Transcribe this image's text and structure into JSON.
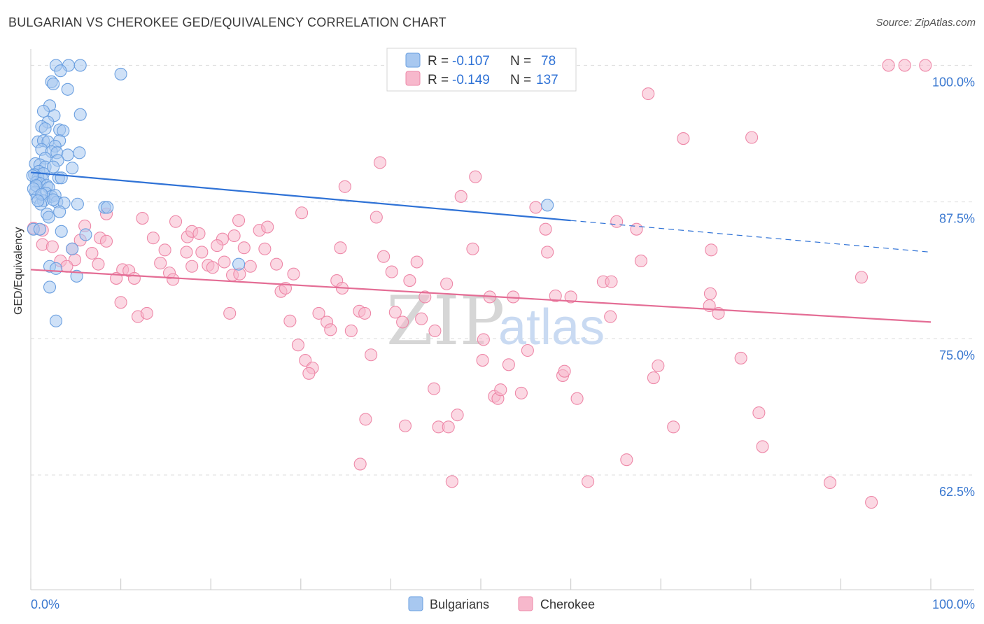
{
  "title": "BULGARIAN VS CHEROKEE GED/EQUIVALENCY CORRELATION CHART",
  "source": "Source: ZipAtlas.com",
  "watermark": {
    "zip": "ZIP",
    "atlas": "atlas"
  },
  "colors": {
    "blue_fill": "#a8c8f0",
    "blue_stroke": "#6a9fe0",
    "blue_line": "#2f72d6",
    "pink_fill": "#f7b8cc",
    "pink_stroke": "#ee88a8",
    "pink_line": "#e46d95",
    "axis_label": "#3a78d0",
    "grid": "#dddddd"
  },
  "legend": [
    {
      "r_label": "R = ",
      "r_value": "-0.107",
      "n_label": "N = ",
      "n_value": "78"
    },
    {
      "r_label": "R = ",
      "r_value": "-0.149",
      "n_label": "N = ",
      "n_value": "137"
    }
  ],
  "chart_data": {
    "type": "scatter",
    "xlabel": "",
    "ylabel": "GED/Equivalency",
    "xlim": [
      0,
      100
    ],
    "ylim": [
      52,
      101.5
    ],
    "x_tick_labels": [
      "0.0%",
      "100.0%"
    ],
    "y_ticks": [
      62.5,
      75.0,
      87.5,
      100.0
    ],
    "y_tick_labels": [
      "62.5%",
      "75.0%",
      "87.5%",
      "100.0%"
    ],
    "legend_items": [
      "Bulgarians",
      "Cherokee"
    ],
    "series": [
      {
        "name": "Bulgarians",
        "r": -0.107,
        "n": 78,
        "trend": {
          "x0": 0,
          "y0": 90.2,
          "x1": 60,
          "y1": 85.8,
          "dash_x1": 100,
          "dash_y1": 82.9
        },
        "points": [
          [
            2.8,
            100.0
          ],
          [
            4.2,
            100.0
          ],
          [
            5.5,
            100.0
          ],
          [
            3.3,
            99.5
          ],
          [
            10.0,
            99.2
          ],
          [
            2.3,
            98.5
          ],
          [
            2.5,
            98.3
          ],
          [
            4.1,
            97.8
          ],
          [
            2.1,
            96.3
          ],
          [
            1.4,
            95.8
          ],
          [
            2.6,
            95.4
          ],
          [
            5.5,
            95.5
          ],
          [
            1.9,
            94.8
          ],
          [
            1.2,
            94.4
          ],
          [
            1.6,
            94.2
          ],
          [
            3.2,
            94.1
          ],
          [
            3.6,
            94.0
          ],
          [
            0.8,
            93.0
          ],
          [
            1.4,
            93.1
          ],
          [
            1.9,
            93.0
          ],
          [
            3.2,
            93.1
          ],
          [
            2.7,
            92.6
          ],
          [
            1.2,
            92.3
          ],
          [
            2.3,
            92.1
          ],
          [
            2.9,
            92.0
          ],
          [
            4.1,
            91.8
          ],
          [
            5.4,
            92.0
          ],
          [
            1.6,
            91.5
          ],
          [
            3.0,
            91.3
          ],
          [
            0.5,
            91.0
          ],
          [
            1.0,
            90.9
          ],
          [
            1.6,
            90.7
          ],
          [
            2.5,
            90.7
          ],
          [
            0.9,
            90.3
          ],
          [
            4.6,
            90.6
          ],
          [
            0.4,
            90.0
          ],
          [
            1.4,
            90.1
          ],
          [
            0.8,
            89.7
          ],
          [
            1.3,
            89.6
          ],
          [
            3.1,
            89.7
          ],
          [
            3.4,
            89.7
          ],
          [
            0.6,
            89.3
          ],
          [
            1.0,
            89.2
          ],
          [
            1.8,
            89.0
          ],
          [
            2.0,
            88.8
          ],
          [
            0.5,
            88.4
          ],
          [
            1.7,
            88.3
          ],
          [
            2.3,
            88.0
          ],
          [
            2.7,
            88.1
          ],
          [
            0.7,
            87.9
          ],
          [
            1.4,
            87.6
          ],
          [
            1.1,
            87.3
          ],
          [
            2.9,
            87.5
          ],
          [
            3.7,
            87.4
          ],
          [
            5.2,
            87.3
          ],
          [
            8.2,
            87.0
          ],
          [
            8.5,
            87.0
          ],
          [
            3.2,
            86.6
          ],
          [
            1.8,
            86.4
          ],
          [
            2.0,
            86.1
          ],
          [
            57.4,
            87.2
          ],
          [
            0.3,
            85.0
          ],
          [
            3.4,
            84.8
          ],
          [
            6.1,
            84.5
          ],
          [
            4.6,
            83.2
          ],
          [
            2.1,
            81.6
          ],
          [
            2.8,
            81.4
          ],
          [
            23.1,
            81.8
          ],
          [
            5.1,
            80.7
          ],
          [
            2.1,
            79.7
          ],
          [
            2.8,
            76.6
          ],
          [
            1.0,
            85.0
          ],
          [
            0.2,
            89.9
          ],
          [
            0.6,
            89.0
          ],
          [
            0.3,
            88.7
          ],
          [
            1.2,
            88.2
          ],
          [
            0.8,
            87.6
          ],
          [
            2.5,
            87.7
          ]
        ]
      },
      {
        "name": "Cherokee",
        "r": -0.149,
        "n": 137,
        "trend": {
          "x0": 0,
          "y0": 81.3,
          "x1": 100,
          "y1": 76.5
        },
        "points": [
          [
            0.3,
            85.1
          ],
          [
            1.3,
            84.9
          ],
          [
            1.3,
            83.6
          ],
          [
            2.4,
            83.4
          ],
          [
            5.5,
            84.0
          ],
          [
            6.0,
            85.3
          ],
          [
            7.7,
            84.2
          ],
          [
            8.4,
            83.9
          ],
          [
            6.8,
            82.8
          ],
          [
            4.6,
            83.2
          ],
          [
            3.3,
            82.1
          ],
          [
            4.9,
            82.2
          ],
          [
            4.0,
            81.6
          ],
          [
            7.5,
            81.8
          ],
          [
            10.2,
            81.3
          ],
          [
            10.9,
            81.2
          ],
          [
            9.5,
            80.5
          ],
          [
            11.5,
            80.5
          ],
          [
            10.0,
            78.3
          ],
          [
            11.9,
            77.0
          ],
          [
            12.9,
            77.3
          ],
          [
            8.4,
            86.4
          ],
          [
            12.4,
            86.0
          ],
          [
            13.6,
            84.2
          ],
          [
            14.9,
            83.1
          ],
          [
            14.4,
            81.9
          ],
          [
            15.4,
            81.0
          ],
          [
            15.8,
            80.4
          ],
          [
            16.1,
            85.7
          ],
          [
            17.4,
            84.3
          ],
          [
            17.3,
            82.9
          ],
          [
            17.9,
            84.8
          ],
          [
            18.7,
            84.6
          ],
          [
            17.9,
            81.6
          ],
          [
            19.0,
            82.9
          ],
          [
            19.7,
            81.7
          ],
          [
            20.2,
            81.5
          ],
          [
            21.3,
            84.1
          ],
          [
            20.7,
            83.5
          ],
          [
            21.5,
            82.0
          ],
          [
            22.4,
            80.8
          ],
          [
            22.1,
            77.3
          ],
          [
            23.1,
            85.8
          ],
          [
            22.6,
            84.4
          ],
          [
            23.7,
            83.3
          ],
          [
            23.2,
            80.9
          ],
          [
            24.4,
            81.6
          ],
          [
            25.4,
            84.9
          ],
          [
            26.0,
            83.2
          ],
          [
            26.3,
            85.2
          ],
          [
            27.3,
            81.8
          ],
          [
            27.8,
            79.3
          ],
          [
            28.3,
            79.6
          ],
          [
            28.8,
            76.6
          ],
          [
            29.2,
            80.9
          ],
          [
            30.1,
            86.5
          ],
          [
            29.7,
            74.4
          ],
          [
            30.5,
            73.0
          ],
          [
            31.3,
            72.3
          ],
          [
            30.9,
            71.8
          ],
          [
            32.0,
            77.3
          ],
          [
            32.9,
            76.5
          ],
          [
            33.3,
            75.8
          ],
          [
            34.4,
            83.3
          ],
          [
            34.0,
            80.3
          ],
          [
            34.6,
            79.6
          ],
          [
            34.9,
            88.9
          ],
          [
            35.6,
            75.7
          ],
          [
            36.5,
            77.5
          ],
          [
            37.1,
            77.3
          ],
          [
            37.8,
            73.5
          ],
          [
            37.2,
            67.6
          ],
          [
            36.6,
            63.5
          ],
          [
            38.4,
            86.1
          ],
          [
            38.8,
            91.1
          ],
          [
            39.2,
            82.5
          ],
          [
            40.1,
            81.1
          ],
          [
            40.5,
            77.4
          ],
          [
            41.3,
            76.5
          ],
          [
            41.6,
            67.0
          ],
          [
            42.1,
            80.3
          ],
          [
            42.9,
            82.0
          ],
          [
            43.8,
            78.8
          ],
          [
            43.4,
            76.8
          ],
          [
            44.8,
            70.4
          ],
          [
            44.9,
            75.7
          ],
          [
            45.3,
            66.9
          ],
          [
            46.2,
            80.0
          ],
          [
            46.4,
            66.9
          ],
          [
            46.8,
            61.9
          ],
          [
            47.8,
            88.0
          ],
          [
            47.4,
            68.0
          ],
          [
            49.1,
            83.2
          ],
          [
            49.4,
            89.8
          ],
          [
            50.2,
            73.0
          ],
          [
            50.3,
            74.9
          ],
          [
            51.0,
            78.8
          ],
          [
            51.5,
            69.7
          ],
          [
            51.9,
            69.5
          ],
          [
            52.2,
            70.3
          ],
          [
            53.1,
            72.6
          ],
          [
            53.6,
            78.8
          ],
          [
            54.5,
            70.0
          ],
          [
            55.2,
            73.9
          ],
          [
            56.1,
            87.0
          ],
          [
            57.2,
            85.0
          ],
          [
            57.4,
            82.9
          ],
          [
            58.3,
            78.9
          ],
          [
            59.1,
            71.6
          ],
          [
            59.3,
            72.0
          ],
          [
            60.0,
            78.8
          ],
          [
            60.7,
            69.5
          ],
          [
            61.9,
            61.9
          ],
          [
            63.6,
            80.2
          ],
          [
            64.5,
            80.2
          ],
          [
            64.4,
            77.0
          ],
          [
            65.1,
            85.7
          ],
          [
            66.2,
            63.9
          ],
          [
            67.3,
            85.0
          ],
          [
            67.8,
            82.1
          ],
          [
            68.6,
            97.4
          ],
          [
            69.2,
            71.4
          ],
          [
            69.7,
            72.5
          ],
          [
            71.4,
            66.9
          ],
          [
            72.5,
            93.3
          ],
          [
            75.4,
            78.0
          ],
          [
            75.6,
            83.1
          ],
          [
            75.5,
            79.1
          ],
          [
            76.4,
            77.3
          ],
          [
            78.9,
            73.2
          ],
          [
            80.1,
            93.4
          ],
          [
            80.9,
            68.2
          ],
          [
            81.3,
            65.1
          ],
          [
            88.8,
            61.8
          ],
          [
            92.3,
            80.6
          ],
          [
            93.4,
            60.0
          ],
          [
            95.3,
            100.0
          ],
          [
            97.1,
            100.0
          ],
          [
            99.4,
            100.0
          ]
        ]
      }
    ]
  }
}
